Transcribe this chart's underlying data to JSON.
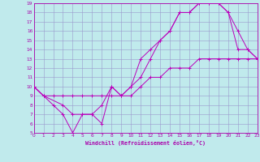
{
  "xlabel": "Windchill (Refroidissement éolien,°C)",
  "xlim": [
    0,
    23
  ],
  "ylim": [
    5,
    19
  ],
  "xticks": [
    0,
    1,
    2,
    3,
    4,
    5,
    6,
    7,
    8,
    9,
    10,
    11,
    12,
    13,
    14,
    15,
    16,
    17,
    18,
    19,
    20,
    21,
    22,
    23
  ],
  "yticks": [
    5,
    6,
    7,
    8,
    9,
    10,
    11,
    12,
    13,
    14,
    15,
    16,
    17,
    18,
    19
  ],
  "bg_color": "#c0eaec",
  "grid_color": "#9999cc",
  "line_color": "#bb00bb",
  "line1_x": [
    0,
    1,
    2,
    3,
    4,
    5,
    6,
    7,
    8,
    9,
    10,
    11,
    12,
    13,
    14,
    15,
    16,
    17,
    18,
    19,
    20,
    21,
    22,
    23
  ],
  "line1_y": [
    10,
    9,
    8,
    7,
    5,
    7,
    7,
    8,
    10,
    9,
    10,
    13,
    14,
    15,
    16,
    18,
    18,
    19,
    19,
    19,
    18,
    14,
    14,
    13
  ],
  "line2_x": [
    0,
    1,
    3,
    4,
    5,
    6,
    7,
    8,
    9,
    10,
    11,
    12,
    13,
    14,
    15,
    16,
    17,
    18,
    19,
    20,
    21,
    22,
    23
  ],
  "line2_y": [
    10,
    9,
    8,
    7,
    7,
    7,
    6,
    10,
    9,
    10,
    11,
    13,
    15,
    16,
    18,
    18,
    19,
    19,
    19,
    18,
    16,
    14,
    13
  ],
  "line3_x": [
    0,
    1,
    2,
    3,
    4,
    5,
    6,
    7,
    8,
    9,
    10,
    11,
    12,
    13,
    14,
    15,
    16,
    17,
    18,
    19,
    20,
    21,
    22,
    23
  ],
  "line3_y": [
    10,
    9,
    9,
    9,
    9,
    9,
    9,
    9,
    9,
    9,
    9,
    10,
    11,
    11,
    12,
    12,
    12,
    13,
    13,
    13,
    13,
    13,
    13,
    13
  ]
}
